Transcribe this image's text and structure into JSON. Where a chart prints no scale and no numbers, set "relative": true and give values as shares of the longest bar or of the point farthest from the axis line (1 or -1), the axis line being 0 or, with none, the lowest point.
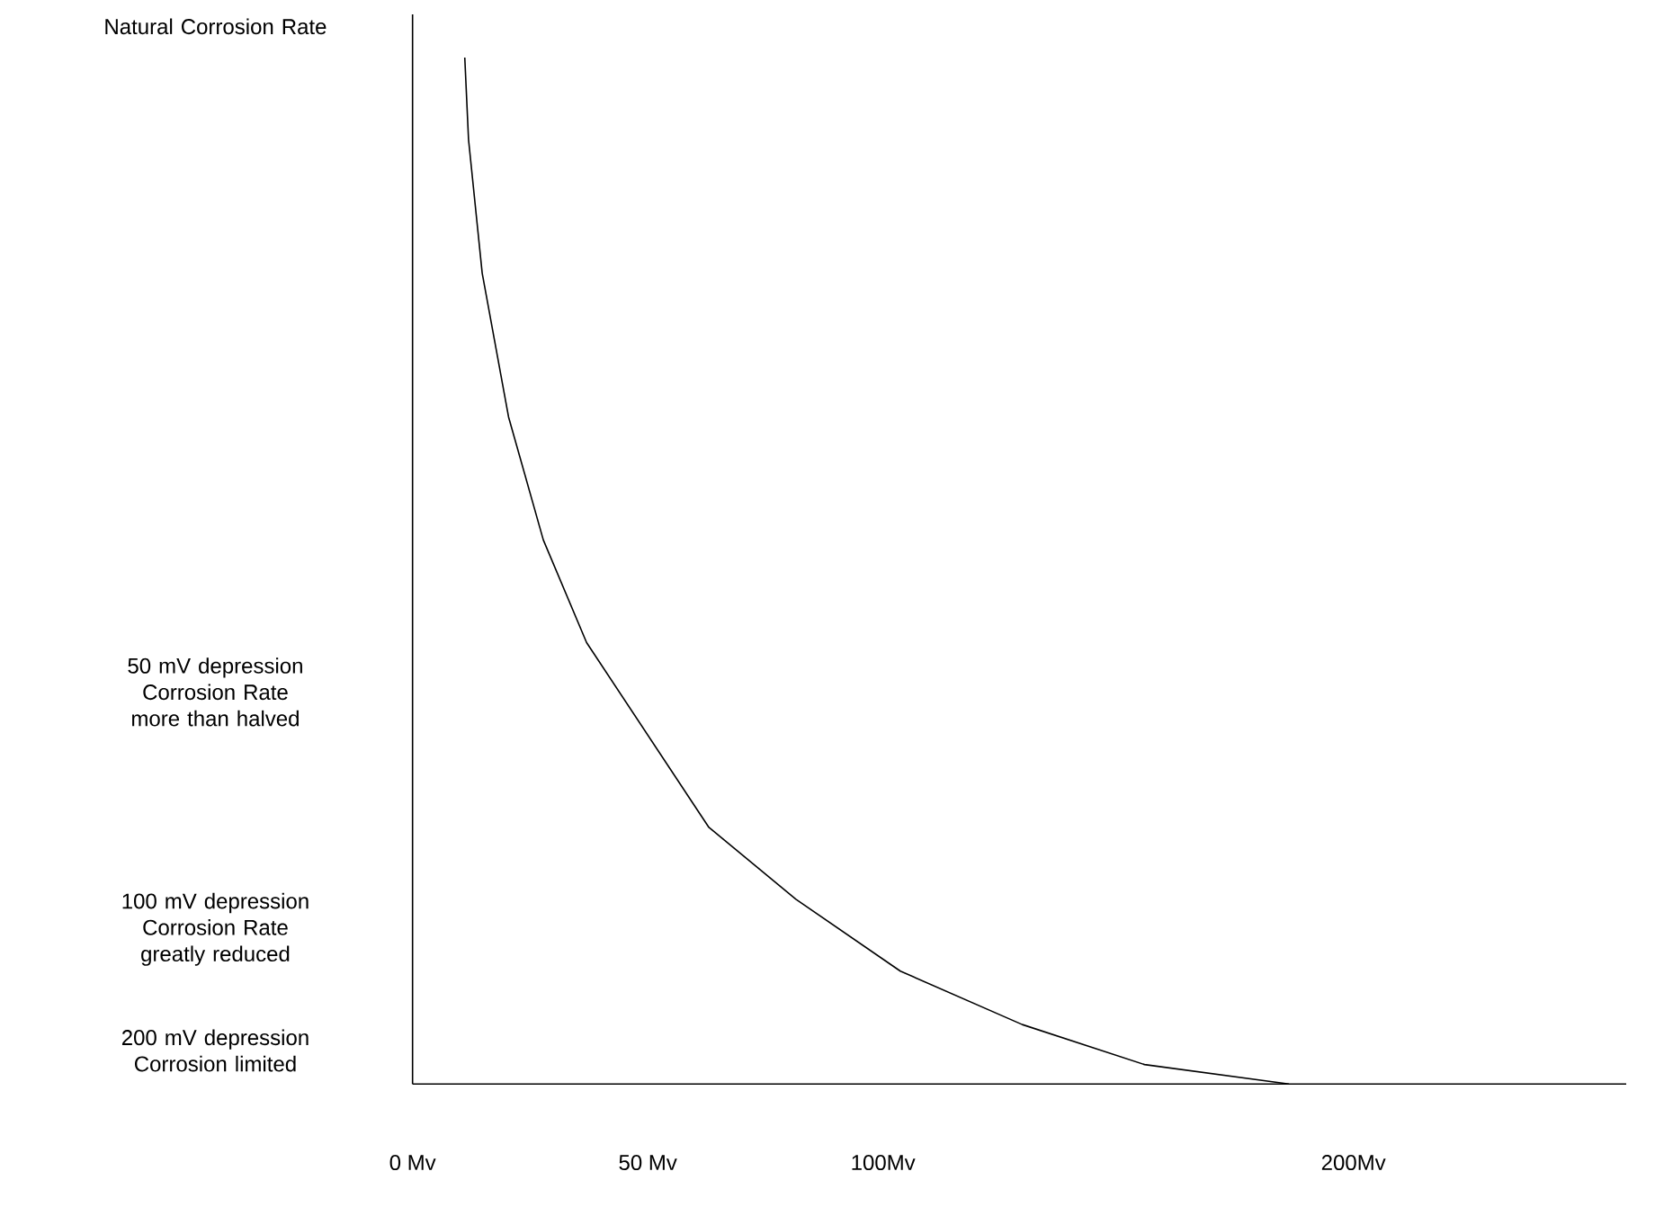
{
  "chart_data": {
    "type": "line",
    "relative": true,
    "color": "#000000",
    "x": [
      11.1,
      11.9,
      14.8,
      20.4,
      27.8,
      37,
      50,
      63,
      81.5,
      103.7,
      129.6,
      155.6,
      186.3
    ],
    "values": [
      1,
      0.92,
      0.79,
      0.65,
      0.53,
      0.43,
      0.34,
      0.25,
      0.18,
      0.11,
      0.058,
      0.019,
      0
    ],
    "xlim": [
      0,
      258
    ],
    "xticks": [
      {
        "value": 0,
        "label": "0 Mv"
      },
      {
        "value": 50,
        "label": "50 Mv"
      },
      {
        "value": 100,
        "label": "100Mv"
      },
      {
        "value": 200,
        "label": "200Mv"
      }
    ],
    "annotations": [
      "Natural Corrosion Rate",
      "50 mV depression Corrosion Rate more than halved",
      "100 mV depression Corrosion Rate greatly reduced",
      "200 mV depression Corrosion limited"
    ]
  }
}
